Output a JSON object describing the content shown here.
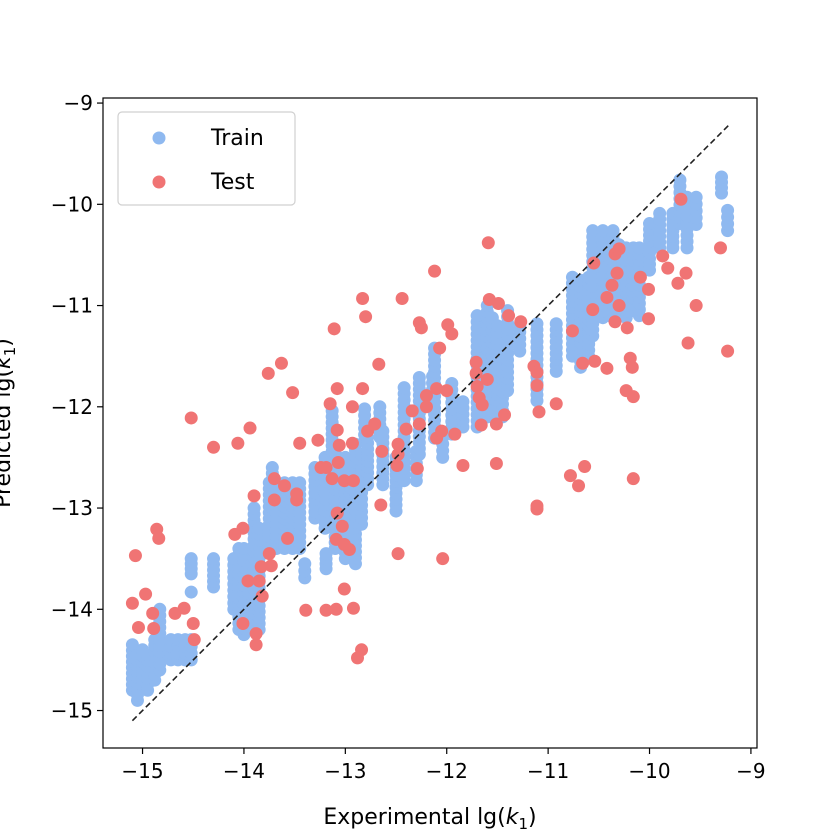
{
  "chart_data": {
    "type": "scatter",
    "title": "",
    "xlabel": {
      "prefix": "Experimental lg(",
      "var": "k",
      "sub": "1",
      "suffix": ")"
    },
    "ylabel": {
      "prefix": "Predicted lg(",
      "var": "k",
      "sub": "1",
      "suffix": ")"
    },
    "xlim": [
      -15.39,
      -8.94
    ],
    "ylim": [
      -15.37,
      -8.95
    ],
    "xticks": [
      {
        "v": -15,
        "label": "−15"
      },
      {
        "v": -14,
        "label": "−14"
      },
      {
        "v": -13,
        "label": "−13"
      },
      {
        "v": -12,
        "label": "−12"
      },
      {
        "v": -11,
        "label": "−11"
      },
      {
        "v": -10,
        "label": "−10"
      },
      {
        "v": -9,
        "label": "−9"
      }
    ],
    "yticks": [
      {
        "v": -15,
        "label": "−15"
      },
      {
        "v": -14,
        "label": "−14"
      },
      {
        "v": -13,
        "label": "−13"
      },
      {
        "v": -12,
        "label": "−12"
      },
      {
        "v": -11,
        "label": "−11"
      },
      {
        "v": -10,
        "label": "−10"
      },
      {
        "v": -9,
        "label": "−9"
      }
    ],
    "grid": false,
    "legend": {
      "placement": "top-left",
      "entries": [
        {
          "label": "Train",
          "color": "#8fb9f0"
        },
        {
          "label": "Test",
          "color": "#f07474"
        }
      ]
    },
    "reference_line": {
      "style": "dashed",
      "color": "#222222",
      "from": [
        -15.1,
        -15.1
      ],
      "to": [
        -9.2,
        -9.2
      ]
    },
    "series": [
      {
        "name": "Train",
        "color": "#8fb9f0",
        "columns_note": "vertical clusters of points: [x, y_low, y_high]",
        "columns": [
          [
            -15.1,
            -14.8,
            -14.35
          ],
          [
            -15.05,
            -14.9,
            -14.45
          ],
          [
            -15.0,
            -14.75,
            -14.4
          ],
          [
            -14.95,
            -14.8,
            -14.45
          ],
          [
            -14.88,
            -14.7,
            -14.3
          ],
          [
            -14.83,
            -14.6,
            -14.0
          ],
          [
            -14.72,
            -14.5,
            -14.3
          ],
          [
            -14.65,
            -14.5,
            -14.3
          ],
          [
            -14.58,
            -14.5,
            -14.3
          ],
          [
            -14.52,
            -14.5,
            -14.3
          ],
          [
            -14.52,
            -13.65,
            -13.5
          ],
          [
            -14.52,
            -13.83,
            -13.83
          ],
          [
            -14.3,
            -13.78,
            -13.5
          ],
          [
            -14.1,
            -14.0,
            -13.5
          ],
          [
            -14.05,
            -14.2,
            -13.4
          ],
          [
            -14.0,
            -14.25,
            -13.4
          ],
          [
            -13.95,
            -14.2,
            -13.6
          ],
          [
            -13.9,
            -14.1,
            -13.0
          ],
          [
            -13.85,
            -14.2,
            -13.2
          ],
          [
            -13.75,
            -13.4,
            -12.75
          ],
          [
            -13.72,
            -13.0,
            -12.6
          ],
          [
            -13.68,
            -13.4,
            -12.75
          ],
          [
            -13.6,
            -13.4,
            -12.75
          ],
          [
            -13.52,
            -13.4,
            -12.75
          ],
          [
            -13.45,
            -13.4,
            -12.75
          ],
          [
            -13.4,
            -13.69,
            -13.55
          ],
          [
            -13.19,
            -13.6,
            -13.45
          ],
          [
            -13.3,
            -13.1,
            -12.6
          ],
          [
            -13.2,
            -13.2,
            -12.5
          ],
          [
            -13.13,
            -12.73,
            -12.04
          ],
          [
            -13.1,
            -13.4,
            -12.4
          ],
          [
            -13.0,
            -13.5,
            -12.5
          ],
          [
            -12.95,
            -13.45,
            -12.8
          ],
          [
            -12.9,
            -13.55,
            -12.37
          ],
          [
            -12.84,
            -13.16,
            -12.47
          ],
          [
            -12.81,
            -12.34,
            -12.02
          ],
          [
            -12.78,
            -12.77,
            -12.24
          ],
          [
            -12.66,
            -12.3,
            -12.0
          ],
          [
            -12.63,
            -12.77,
            -12.24
          ],
          [
            -12.5,
            -13.03,
            -12.5
          ],
          [
            -12.42,
            -12.73,
            -11.81
          ],
          [
            -12.3,
            -12.73,
            -12.44
          ],
          [
            -12.27,
            -12.47,
            -11.71
          ],
          [
            -12.14,
            -11.83,
            -11.7
          ],
          [
            -12.12,
            -12.31,
            -11.42
          ],
          [
            -12.04,
            -12.5,
            -12.3
          ],
          [
            -11.95,
            -12.27,
            -11.77
          ],
          [
            -11.84,
            -12.2,
            -11.95
          ],
          [
            -11.7,
            -12.2,
            -11.1
          ],
          [
            -11.6,
            -12.1,
            -11.0
          ],
          [
            -11.55,
            -12.1,
            -11.12
          ],
          [
            -11.5,
            -12.0,
            -11.2
          ],
          [
            -11.45,
            -12.1,
            -11.6
          ],
          [
            -11.4,
            -11.84,
            -11.05
          ],
          [
            -11.28,
            -11.45,
            -11.2
          ],
          [
            -11.11,
            -11.94,
            -11.18
          ],
          [
            -10.92,
            -11.65,
            -11.18
          ],
          [
            -10.76,
            -11.5,
            -10.72
          ],
          [
            -10.68,
            -11.61,
            -10.75
          ],
          [
            -10.6,
            -11.5,
            -10.72
          ],
          [
            -10.56,
            -11.3,
            -10.26
          ],
          [
            -10.46,
            -11.12,
            -10.26
          ],
          [
            -10.36,
            -11.12,
            -10.26
          ],
          [
            -10.3,
            -11.1,
            -10.4
          ],
          [
            -10.23,
            -11.12,
            -10.43
          ],
          [
            -10.16,
            -11.05,
            -10.43
          ],
          [
            -10.1,
            -11.1,
            -10.43
          ],
          [
            -10.0,
            -10.65,
            -10.19
          ],
          [
            -9.9,
            -10.43,
            -10.09
          ],
          [
            -9.77,
            -10.43,
            -10.09
          ],
          [
            -9.7,
            -10.19,
            -9.76
          ],
          [
            -9.63,
            -10.43,
            -9.93
          ],
          [
            -9.54,
            -10.2,
            -9.93
          ],
          [
            -9.29,
            -9.89,
            -9.73
          ],
          [
            -9.23,
            -10.26,
            -10.06
          ]
        ]
      },
      {
        "name": "Test",
        "color": "#f07474",
        "points": [
          [
            -15.1,
            -13.94
          ],
          [
            -14.97,
            -13.85
          ],
          [
            -15.07,
            -13.47
          ],
          [
            -15.04,
            -14.18
          ],
          [
            -14.9,
            -14.04
          ],
          [
            -14.89,
            -14.19
          ],
          [
            -14.86,
            -13.21
          ],
          [
            -14.84,
            -13.3
          ],
          [
            -14.68,
            -14.04
          ],
          [
            -14.59,
            -13.99
          ],
          [
            -14.5,
            -14.14
          ],
          [
            -14.49,
            -14.3
          ],
          [
            -14.52,
            -12.11
          ],
          [
            -14.3,
            -12.4
          ],
          [
            -14.06,
            -12.36
          ],
          [
            -13.94,
            -12.21
          ],
          [
            -14.09,
            -13.26
          ],
          [
            -14.01,
            -13.2
          ],
          [
            -14.01,
            -14.14
          ],
          [
            -13.88,
            -14.24
          ],
          [
            -13.88,
            -14.35
          ],
          [
            -13.9,
            -12.88
          ],
          [
            -13.7,
            -12.71
          ],
          [
            -13.6,
            -12.78
          ],
          [
            -13.48,
            -12.86
          ],
          [
            -13.7,
            -12.92
          ],
          [
            -13.48,
            -12.92
          ],
          [
            -13.57,
            -13.3
          ],
          [
            -13.75,
            -13.45
          ],
          [
            -13.83,
            -13.58
          ],
          [
            -13.73,
            -13.57
          ],
          [
            -13.96,
            -13.72
          ],
          [
            -13.85,
            -13.72
          ],
          [
            -13.82,
            -13.87
          ],
          [
            -13.76,
            -11.67
          ],
          [
            -13.63,
            -11.57
          ],
          [
            -13.52,
            -11.86
          ],
          [
            -13.45,
            -12.36
          ],
          [
            -13.27,
            -12.33
          ],
          [
            -13.08,
            -12.23
          ],
          [
            -13.06,
            -12.38
          ],
          [
            -12.93,
            -12.36
          ],
          [
            -13.07,
            -12.55
          ],
          [
            -13.24,
            -12.6
          ],
          [
            -13.19,
            -12.6
          ],
          [
            -13.13,
            -12.71
          ],
          [
            -13.01,
            -12.73
          ],
          [
            -12.92,
            -12.73
          ],
          [
            -13.08,
            -13.05
          ],
          [
            -13.03,
            -13.18
          ],
          [
            -13.09,
            -13.31
          ],
          [
            -13.01,
            -13.36
          ],
          [
            -12.96,
            -13.41
          ],
          [
            -13.01,
            -13.8
          ],
          [
            -13.39,
            -14.01
          ],
          [
            -13.19,
            -14.01
          ],
          [
            -13.09,
            -14.0
          ],
          [
            -12.92,
            -13.99
          ],
          [
            -12.84,
            -14.4
          ],
          [
            -12.88,
            -14.48
          ],
          [
            -12.83,
            -10.93
          ],
          [
            -12.8,
            -11.11
          ],
          [
            -13.11,
            -11.23
          ],
          [
            -12.44,
            -10.93
          ],
          [
            -12.27,
            -11.17
          ],
          [
            -12.25,
            -11.22
          ],
          [
            -11.99,
            -11.19
          ],
          [
            -11.95,
            -11.28
          ],
          [
            -12.67,
            -11.58
          ],
          [
            -13.08,
            -11.82
          ],
          [
            -12.83,
            -11.82
          ],
          [
            -13.15,
            -11.97
          ],
          [
            -12.93,
            -12.0
          ],
          [
            -12.07,
            -11.42
          ],
          [
            -12.78,
            -12.24
          ],
          [
            -12.71,
            -12.17
          ],
          [
            -12.64,
            -12.44
          ],
          [
            -12.48,
            -12.37
          ],
          [
            -12.48,
            -12.47
          ],
          [
            -12.49,
            -12.58
          ],
          [
            -12.65,
            -12.97
          ],
          [
            -12.48,
            -13.45
          ],
          [
            -12.4,
            -12.22
          ],
          [
            -12.34,
            -12.04
          ],
          [
            -12.27,
            -12.17
          ],
          [
            -12.29,
            -12.61
          ],
          [
            -12.2,
            -11.89
          ],
          [
            -12.2,
            -12.0
          ],
          [
            -12.1,
            -11.82
          ],
          [
            -12.0,
            -11.84
          ],
          [
            -12.1,
            -12.31
          ],
          [
            -12.05,
            -12.24
          ],
          [
            -11.92,
            -12.27
          ],
          [
            -11.84,
            -12.58
          ],
          [
            -12.04,
            -13.5
          ],
          [
            -11.71,
            -11.56
          ],
          [
            -11.71,
            -11.67
          ],
          [
            -11.6,
            -11.73
          ],
          [
            -11.7,
            -11.8
          ],
          [
            -11.68,
            -11.91
          ],
          [
            -11.65,
            -11.98
          ],
          [
            -11.66,
            -12.18
          ],
          [
            -11.51,
            -12.17
          ],
          [
            -11.43,
            -12.08
          ],
          [
            -11.51,
            -12.56
          ],
          [
            -12.12,
            -10.66
          ],
          [
            -11.59,
            -10.38
          ],
          [
            -11.58,
            -10.94
          ],
          [
            -11.49,
            -10.98
          ],
          [
            -11.39,
            -11.1
          ],
          [
            -11.27,
            -11.16
          ],
          [
            -11.14,
            -11.6
          ],
          [
            -11.11,
            -11.66
          ],
          [
            -11.11,
            -11.79
          ],
          [
            -11.09,
            -12.05
          ],
          [
            -10.92,
            -11.97
          ],
          [
            -11.11,
            -12.98
          ],
          [
            -11.11,
            -13.01
          ],
          [
            -10.78,
            -12.68
          ],
          [
            -10.7,
            -12.78
          ],
          [
            -10.64,
            -12.59
          ],
          [
            -10.16,
            -12.71
          ],
          [
            -10.76,
            -11.25
          ],
          [
            -10.66,
            -11.57
          ],
          [
            -10.54,
            -11.55
          ],
          [
            -10.42,
            -11.62
          ],
          [
            -10.56,
            -11.04
          ],
          [
            -10.34,
            -11.16
          ],
          [
            -10.22,
            -11.22
          ],
          [
            -10.3,
            -11.0
          ],
          [
            -10.42,
            -10.92
          ],
          [
            -10.37,
            -10.8
          ],
          [
            -10.32,
            -10.68
          ],
          [
            -10.34,
            -10.49
          ],
          [
            -10.3,
            -10.44
          ],
          [
            -10.55,
            -10.58
          ],
          [
            -10.09,
            -10.72
          ],
          [
            -10.01,
            -10.84
          ],
          [
            -9.87,
            -10.51
          ],
          [
            -9.82,
            -10.63
          ],
          [
            -9.64,
            -10.68
          ],
          [
            -9.72,
            -10.78
          ],
          [
            -9.69,
            -9.95
          ],
          [
            -9.54,
            -11.0
          ],
          [
            -10.01,
            -11.13
          ],
          [
            -9.62,
            -11.37
          ],
          [
            -9.3,
            -10.43
          ],
          [
            -9.23,
            -11.45
          ],
          [
            -10.19,
            -11.52
          ],
          [
            -10.17,
            -11.61
          ],
          [
            -10.23,
            -11.84
          ],
          [
            -10.16,
            -11.9
          ]
        ]
      }
    ]
  }
}
